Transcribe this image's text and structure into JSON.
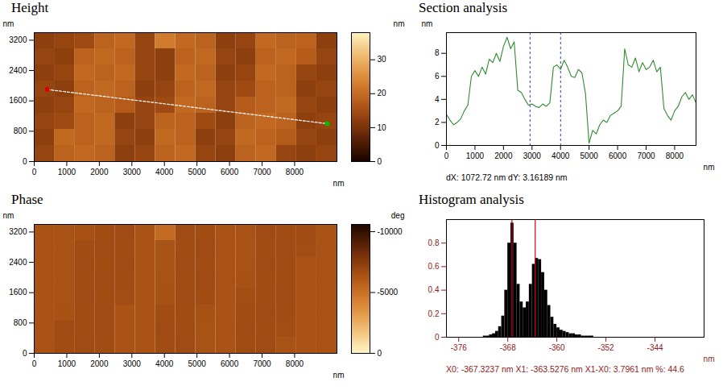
{
  "chart_data": [
    {
      "type": "heatmap",
      "title": "Height",
      "xlabel": "nm",
      "ylabel": "nm",
      "xlim": [
        0,
        9300
      ],
      "ylim": [
        0,
        3400
      ],
      "xticks": [
        0,
        1000,
        2000,
        3000,
        4000,
        5000,
        6000,
        7000,
        8000
      ],
      "yticks": [
        0,
        800,
        1600,
        2400,
        3200
      ],
      "cells": [
        [
          13,
          18,
          19,
          18,
          12,
          13,
          18,
          19,
          13,
          12,
          18,
          19,
          13,
          12,
          13
        ],
        [
          12,
          19,
          18,
          19,
          13,
          12,
          19,
          18,
          12,
          13,
          19,
          18,
          17,
          13,
          12
        ],
        [
          13,
          14,
          18,
          19,
          12,
          13,
          18,
          18,
          14,
          12,
          18,
          19,
          18,
          12,
          13
        ],
        [
          12,
          13,
          19,
          18,
          17,
          13,
          14,
          19,
          18,
          13,
          17,
          18,
          19,
          13,
          12
        ],
        [
          13,
          12,
          18,
          19,
          18,
          12,
          13,
          18,
          19,
          13,
          14,
          18,
          18,
          12,
          13
        ],
        [
          12,
          13,
          19,
          18,
          19,
          13,
          12,
          19,
          18,
          12,
          13,
          19,
          18,
          13,
          12
        ],
        [
          13,
          12,
          18,
          19,
          18,
          13,
          12,
          18,
          19,
          13,
          12,
          18,
          19,
          17,
          13
        ],
        [
          12,
          13,
          14,
          18,
          19,
          13,
          22,
          19,
          18,
          12,
          13,
          19,
          18,
          18,
          12
        ]
      ],
      "colorbar": {
        "label": "nm",
        "range": [
          0,
          38
        ],
        "ticks": [
          0,
          10,
          20,
          30
        ]
      },
      "section_line": {
        "x": [
          400,
          9000
        ],
        "y": [
          1900,
          1000
        ]
      }
    },
    {
      "type": "line",
      "title": "Section analysis",
      "xlabel": "nm",
      "ylabel": "nm",
      "x": [
        0,
        125,
        250,
        375,
        500,
        625,
        750,
        875,
        1000,
        1125,
        1250,
        1375,
        1500,
        1625,
        1750,
        1875,
        2000,
        2125,
        2250,
        2375,
        2500,
        2625,
        2750,
        2875,
        3000,
        3125,
        3250,
        3375,
        3500,
        3625,
        3750,
        3875,
        4000,
        4125,
        4250,
        4375,
        4500,
        4625,
        4750,
        4875,
        5000,
        5125,
        5250,
        5375,
        5500,
        5625,
        5750,
        5875,
        6000,
        6125,
        6250,
        6375,
        6500,
        6625,
        6750,
        6875,
        7000,
        7125,
        7250,
        7375,
        7500,
        7625,
        7750,
        7875,
        8000,
        8125,
        8250,
        8375,
        8500,
        8625,
        8750
      ],
      "values": [
        2.7,
        2.2,
        1.8,
        2.0,
        2.3,
        3.0,
        3.5,
        6.0,
        6.5,
        6.0,
        6.8,
        6.2,
        7.5,
        7.2,
        8.0,
        7.3,
        8.6,
        9.4,
        8.4,
        9.0,
        4.8,
        4.6,
        4.0,
        3.5,
        3.6,
        3.4,
        3.3,
        3.6,
        3.4,
        3.7,
        6.8,
        7.0,
        6.6,
        7.4,
        6.8,
        6.0,
        5.9,
        6.6,
        6.3,
        4.5,
        0.2,
        1.3,
        1.0,
        1.8,
        2.2,
        2.0,
        2.6,
        2.8,
        3.0,
        3.4,
        8.4,
        7.0,
        6.8,
        7.6,
        6.4,
        7.2,
        6.6,
        6.8,
        7.4,
        6.4,
        6.8,
        3.2,
        2.6,
        2.2,
        3.0,
        3.4,
        4.2,
        4.6,
        4.0,
        4.4,
        3.7
      ],
      "color": "#2e8b2e",
      "xlim": [
        0,
        8750
      ],
      "ylim": [
        0,
        9.8
      ],
      "xticks": [
        0,
        1000,
        2000,
        3000,
        4000,
        5000,
        6000,
        7000,
        8000
      ],
      "yticks": [
        0,
        2,
        4,
        6,
        8
      ],
      "cursors": [
        2930,
        4002.72
      ],
      "caption": "dX: 1072.72 nm dY: 3.16189 nm"
    },
    {
      "type": "heatmap",
      "title": "Phase",
      "xlabel": "nm",
      "ylabel": "nm",
      "xlim": [
        0,
        9300
      ],
      "ylim": [
        0,
        3400
      ],
      "xticks": [
        0,
        1000,
        2000,
        3000,
        4000,
        5000,
        6000,
        7000,
        8000
      ],
      "yticks": [
        0,
        800,
        1600,
        2400,
        3200
      ],
      "cells": [
        [
          -6300,
          -6600,
          -6650,
          -6600,
          -6250,
          -6300,
          -6600,
          -6650,
          -6300,
          -6250,
          -6600,
          -6650,
          -6300,
          -6250,
          -6300
        ],
        [
          -6250,
          -6650,
          -6600,
          -6650,
          -6300,
          -6250,
          -6650,
          -6600,
          -6250,
          -6300,
          -6650,
          -6600,
          -6550,
          -6300,
          -6250
        ],
        [
          -6300,
          -6350,
          -6600,
          -6650,
          -6250,
          -6300,
          -6600,
          -6600,
          -6350,
          -6250,
          -6600,
          -6650,
          -6600,
          -6250,
          -6300
        ],
        [
          -6250,
          -6300,
          -6650,
          -6600,
          -6550,
          -6300,
          -6350,
          -6650,
          -6600,
          -6300,
          -6550,
          -6600,
          -6650,
          -6300,
          -6250
        ],
        [
          -6300,
          -6250,
          -6600,
          -6650,
          -6600,
          -6250,
          -6300,
          -6600,
          -6650,
          -6300,
          -6350,
          -6600,
          -6600,
          -6250,
          -6300
        ],
        [
          -6250,
          -6300,
          -6650,
          -6600,
          -6650,
          -6300,
          -6250,
          -6650,
          -6600,
          -6250,
          -6300,
          -6650,
          -6600,
          -6300,
          -6250
        ],
        [
          -6300,
          -6250,
          -6600,
          -6650,
          -6600,
          -6300,
          -6250,
          -6600,
          -6650,
          -6300,
          -6250,
          -6600,
          -6650,
          -6550,
          -6300
        ],
        [
          -6250,
          -6300,
          -6350,
          -6600,
          -6650,
          -6300,
          -5200,
          -6650,
          -6600,
          -6250,
          -6300,
          -6650,
          -6600,
          -6600,
          -6250
        ]
      ],
      "colorbar": {
        "label": "deg",
        "range": [
          0,
          -10600
        ],
        "ticks": [
          -10000,
          -5000,
          0
        ]
      }
    },
    {
      "type": "histogram",
      "title": "Histogram analysis",
      "xlabel": "nm",
      "bins": [
        -372,
        -371.5,
        -371,
        -370.5,
        -370,
        -369.5,
        -369,
        -368.5,
        -368,
        -367.5,
        -367,
        -366.5,
        -366,
        -365.5,
        -365,
        -364.5,
        -364,
        -363.5,
        -363,
        -362.5,
        -362,
        -361.5,
        -361,
        -360.5,
        -360,
        -359.5,
        -359,
        -358.5,
        -358,
        -357.5,
        -357,
        -356.5,
        -356,
        -355.5,
        -355,
        -354.5,
        -354
      ],
      "counts": [
        0.01,
        0.01,
        0.02,
        0.03,
        0.05,
        0.09,
        0.18,
        0.4,
        0.8,
        0.97,
        0.8,
        0.45,
        0.3,
        0.25,
        0.3,
        0.45,
        0.62,
        0.67,
        0.66,
        0.55,
        0.4,
        0.27,
        0.17,
        0.11,
        0.08,
        0.06,
        0.05,
        0.04,
        0.03,
        0.03,
        0.02,
        0.02,
        0.01,
        0.01,
        0.01,
        0.01
      ],
      "color": "#000000",
      "xlim": [
        -378,
        -336
      ],
      "ylim": [
        0,
        1
      ],
      "xticks": [
        -376,
        -368,
        -360,
        -352,
        -344
      ],
      "yticks": [
        0,
        0.2,
        0.4,
        0.6,
        0.8
      ],
      "markers": [
        -367.3237,
        -363.5276
      ],
      "caption": "X0: -367.3237 nm X1: -363.5276 nm X1-X0: 3.7961 nm %: 44.6"
    }
  ]
}
